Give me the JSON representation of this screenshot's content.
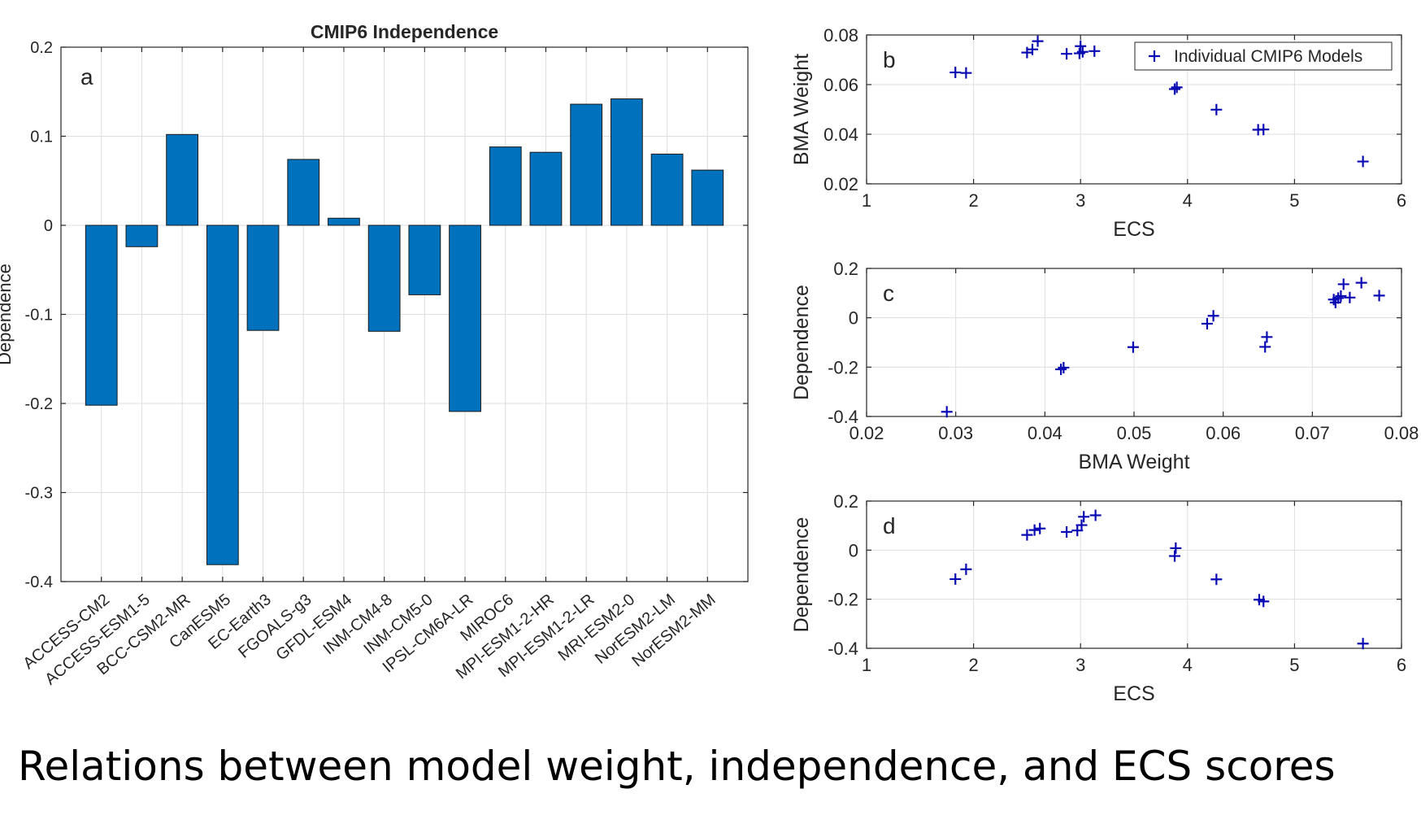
{
  "caption": "Relations between model weight, independence, and ECS scores",
  "chart_data": [
    {
      "type": "bar",
      "panel_label": "a",
      "title": "CMIP6 Independence",
      "xlabel": "",
      "ylabel": "Dependence",
      "ylim": [
        -0.4,
        0.2
      ],
      "yticks": [
        "-0.4",
        "-0.3",
        "-0.2",
        "-0.1",
        "0",
        "0.1",
        "0.2"
      ],
      "grid": true,
      "bar_color": "#0072bd",
      "categories": [
        "ACCESS-CM2",
        "ACCESS-ESM1-5",
        "BCC-CSM2-MR",
        "CanESM5",
        "EC-Earth3",
        "FGOALS-g3",
        "GFDL-ESM4",
        "INM-CM4-8",
        "INM-CM5-0",
        "IPSL-CM6A-LR",
        "MIROC6",
        "MPI-ESM1-2-HR",
        "MPI-ESM1-2-LR",
        "MRI-ESM2-0",
        "NorESM2-LM",
        "NorESM2-MM"
      ],
      "values": [
        -0.202,
        -0.024,
        0.102,
        -0.381,
        -0.118,
        0.074,
        0.008,
        -0.119,
        -0.078,
        -0.209,
        0.088,
        0.082,
        0.136,
        0.142,
        0.08,
        0.062
      ]
    },
    {
      "type": "scatter",
      "panel_label": "b",
      "xlabel": "ECS",
      "ylabel": "BMA Weight",
      "xlim": [
        1,
        6
      ],
      "ylim": [
        0.02,
        0.08
      ],
      "xticks": [
        "1",
        "2",
        "3",
        "4",
        "5",
        "6"
      ],
      "yticks": [
        "0.02",
        "0.04",
        "0.06",
        "0.08"
      ],
      "grid": true,
      "legend_position": "top-right",
      "series": [
        {
          "name": "Individual CMIP6 Models",
          "marker": "+",
          "color": "#0a0ab4",
          "x": [
            1.83,
            1.93,
            2.5,
            2.55,
            2.6,
            2.87,
            2.99,
            3.0,
            3.02,
            3.13,
            3.88,
            3.9,
            4.27,
            4.66,
            4.71,
            5.64
          ],
          "y": [
            0.0649,
            0.0647,
            0.0729,
            0.0742,
            0.0775,
            0.0724,
            0.0726,
            0.0755,
            0.0732,
            0.0735,
            0.0582,
            0.0589,
            0.0499,
            0.0418,
            0.0419,
            0.029
          ]
        }
      ]
    },
    {
      "type": "scatter",
      "panel_label": "c",
      "xlabel": "BMA Weight",
      "ylabel": "Dependence",
      "xlim": [
        0.02,
        0.08
      ],
      "ylim": [
        -0.4,
        0.2
      ],
      "xticks": [
        "0.02",
        "0.03",
        "0.04",
        "0.05",
        "0.06",
        "0.07",
        "0.08"
      ],
      "yticks": [
        "-0.4",
        "-0.2",
        "0",
        "0.2"
      ],
      "grid": true,
      "series": [
        {
          "marker": "+",
          "color": "#0a0ab4",
          "x": [
            0.029,
            0.0418,
            0.0421,
            0.0499,
            0.0582,
            0.0589,
            0.0647,
            0.0649,
            0.0724,
            0.0726,
            0.0729,
            0.0732,
            0.0735,
            0.0742,
            0.0755,
            0.0775
          ],
          "y": [
            -0.381,
            -0.209,
            -0.202,
            -0.119,
            -0.024,
            0.008,
            -0.118,
            -0.078,
            0.074,
            0.062,
            0.08,
            0.088,
            0.136,
            0.082,
            0.142,
            0.09
          ]
        }
      ]
    },
    {
      "type": "scatter",
      "panel_label": "d",
      "xlabel": "ECS",
      "ylabel": "Dependence",
      "xlim": [
        1,
        6
      ],
      "ylim": [
        -0.4,
        0.2
      ],
      "xticks": [
        "1",
        "2",
        "3",
        "4",
        "5",
        "6"
      ],
      "yticks": [
        "-0.4",
        "-0.2",
        "0",
        "0.2"
      ],
      "grid": true,
      "series": [
        {
          "marker": "+",
          "color": "#0a0ab4",
          "x": [
            1.83,
            1.93,
            2.5,
            2.57,
            2.62,
            2.87,
            2.97,
            3.01,
            3.03,
            3.14,
            3.88,
            3.89,
            4.27,
            4.67,
            4.71,
            5.64
          ],
          "y": [
            -0.118,
            -0.078,
            0.062,
            0.082,
            0.088,
            0.074,
            0.08,
            0.102,
            0.136,
            0.142,
            -0.024,
            0.008,
            -0.119,
            -0.202,
            -0.209,
            -0.381
          ]
        }
      ]
    }
  ]
}
